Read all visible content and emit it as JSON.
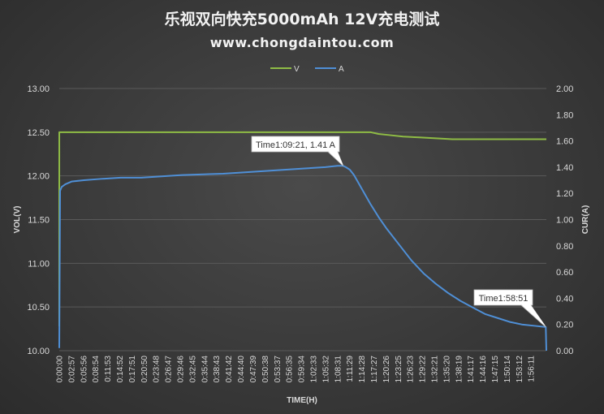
{
  "title": "乐视双向快充5000mAh 12V充电测试",
  "subtitle": "www.chongdaintou.com",
  "chart_data": {
    "type": "line",
    "xlabel": "TIME(H)",
    "ylabel_left": "VOL(V)",
    "ylabel_right": "CUR(A)",
    "legend_position": "top",
    "grid": true,
    "ylim_left": [
      10.0,
      13.0
    ],
    "ylim_right": [
      0.0,
      2.0
    ],
    "yticks_left": [
      "10.00",
      "10.50",
      "11.00",
      "11.50",
      "12.00",
      "12.50",
      "13.00"
    ],
    "yticks_right": [
      "0.00",
      "0.20",
      "0.40",
      "0.60",
      "0.80",
      "1.00",
      "1.20",
      "1.40",
      "1.60",
      "1.80",
      "2.00"
    ],
    "x_tick_labels": [
      "0:00:00",
      "0:02:57",
      "0:05:56",
      "0:08:54",
      "0:11:53",
      "0:14:52",
      "0:17:51",
      "0:20:50",
      "0:23:48",
      "0:26:47",
      "0:29:46",
      "0:32:45",
      "0:35:44",
      "0:38:43",
      "0:41:42",
      "0:44:40",
      "0:47:39",
      "0:50:38",
      "0:53:37",
      "0:56:35",
      "0:59:34",
      "1:02:33",
      "1:05:32",
      "1:08:31",
      "1:11:29",
      "1:14:28",
      "1:17:27",
      "1:20:26",
      "1:23:25",
      "1:26:23",
      "1:29:22",
      "1:32:21",
      "1:35:20",
      "1:38:19",
      "1:41:17",
      "1:44:16",
      "1:47:15",
      "1:50:14",
      "1:53:12",
      "1:56:11"
    ],
    "x_range_minutes": [
      0,
      119
    ],
    "series": [
      {
        "name": "V",
        "color": "#8fbc45",
        "axis": "left",
        "x_minutes": [
          0,
          0.01,
          0.3,
          20,
          40,
          60,
          70,
          72,
          74,
          76,
          78,
          80,
          84,
          88,
          92,
          96,
          100,
          110,
          119
        ],
        "values": [
          10.28,
          12.5,
          12.5,
          12.5,
          12.5,
          12.5,
          12.5,
          12.5,
          12.5,
          12.5,
          12.48,
          12.47,
          12.45,
          12.44,
          12.43,
          12.42,
          12.42,
          12.42,
          12.42
        ]
      },
      {
        "name": "A",
        "color": "#4f8fd6",
        "axis": "right",
        "x_minutes": [
          0,
          0.2,
          0.6,
          1.5,
          3,
          6,
          10,
          15,
          20,
          25,
          30,
          40,
          50,
          55,
          60,
          65,
          68,
          69.35,
          70,
          71,
          72,
          74,
          76,
          78,
          80,
          83,
          86,
          89,
          92,
          95,
          98,
          101,
          104,
          107,
          110,
          113,
          116,
          118.86,
          119
        ],
        "values": [
          0.02,
          1.22,
          1.25,
          1.27,
          1.29,
          1.3,
          1.31,
          1.32,
          1.32,
          1.33,
          1.34,
          1.35,
          1.37,
          1.38,
          1.39,
          1.4,
          1.41,
          1.41,
          1.4,
          1.38,
          1.34,
          1.23,
          1.12,
          1.02,
          0.93,
          0.81,
          0.69,
          0.59,
          0.51,
          0.44,
          0.38,
          0.33,
          0.28,
          0.25,
          0.22,
          0.2,
          0.19,
          0.18,
          0.0
        ]
      }
    ],
    "annotations": [
      {
        "text": "Time1:09:21,  1.41 A",
        "x_minutes": 69.35,
        "value": 1.41,
        "axis": "right"
      },
      {
        "text": "Time1:58:51",
        "x_minutes": 118.86,
        "value": 0.18,
        "axis": "right"
      }
    ]
  }
}
